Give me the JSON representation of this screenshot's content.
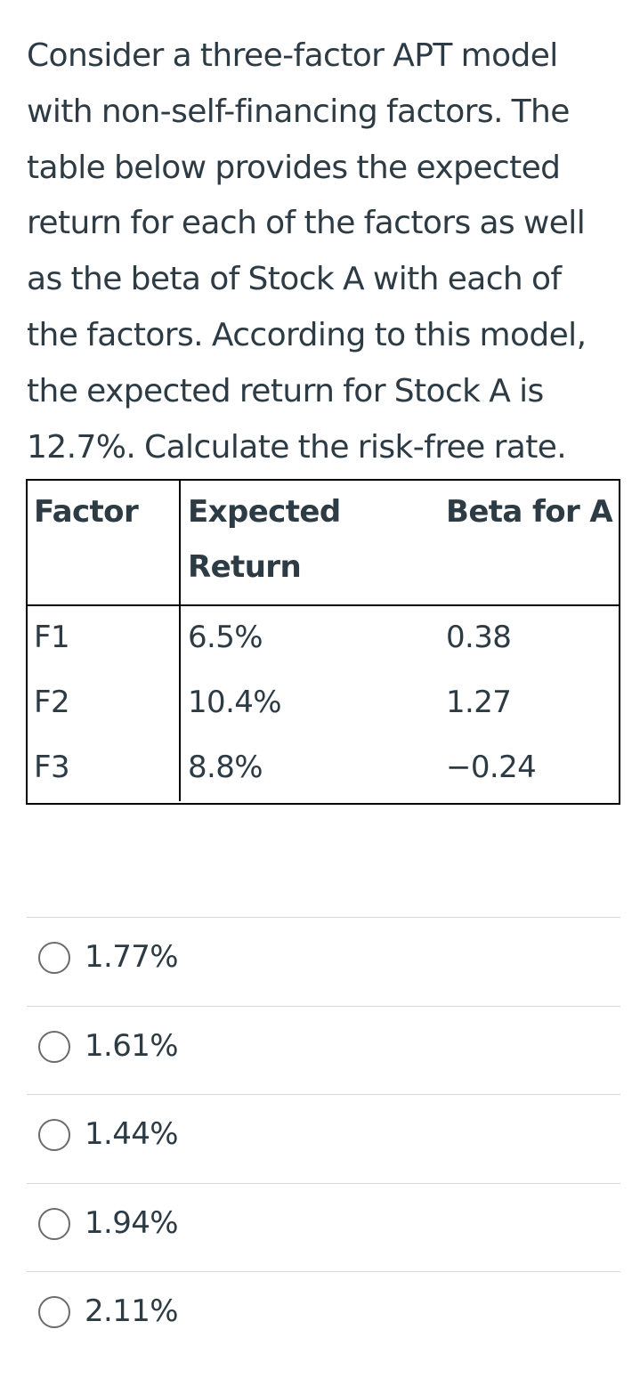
{
  "question": {
    "lines": [
      "Consider a three-factor APT model",
      "with non-self-financing factors. The",
      "table below provides the expected",
      "return for each of the factors as well",
      "as the beta of Stock A with each of",
      "the factors. According to this model,",
      "the expected return for Stock A is",
      "12.7%. Calculate the risk-free rate."
    ]
  },
  "table": {
    "headers": {
      "factor": "Factor",
      "expected_line1": "Expected",
      "expected_line2": "Return",
      "beta": "Beta for A"
    },
    "rows": [
      {
        "factor": "F1",
        "expected_return": "6.5%",
        "beta": "0.38"
      },
      {
        "factor": "F2",
        "expected_return": "10.4%",
        "beta": "1.27"
      },
      {
        "factor": "F3",
        "expected_return": "8.8%",
        "beta": "−0.24"
      }
    ]
  },
  "answers": [
    {
      "label": "1.77%"
    },
    {
      "label": "1.61%"
    },
    {
      "label": "1.44%"
    },
    {
      "label": "1.94%"
    },
    {
      "label": "2.11%"
    }
  ],
  "colors": {
    "text": "#2d3b45",
    "divider": "#d7dadd",
    "radio_border": "#6b6b6b",
    "table_border": "#000000"
  },
  "icons": {
    "answer_radio": "radio-unselected-icon"
  }
}
